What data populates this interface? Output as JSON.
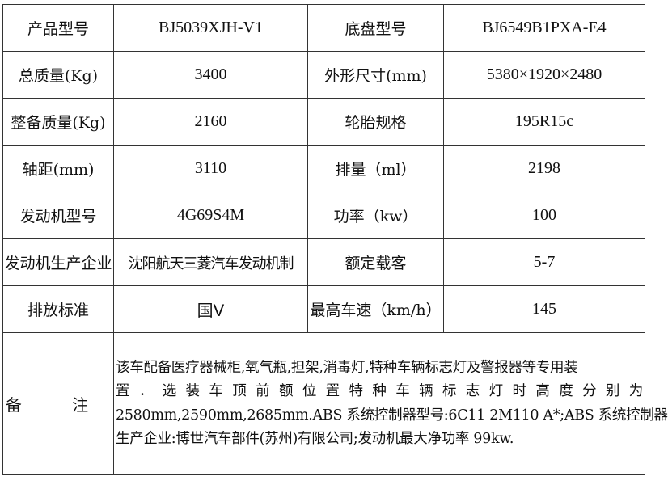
{
  "rows": [
    {
      "l1": "产品型号",
      "v1": "BJ5039XJH-V1",
      "l2": "底盘型号",
      "v2": "BJ6549B1PXA-E4"
    },
    {
      "l1": "总质量(Kg)",
      "v1": "3400",
      "l2": "外形尺寸(mm)",
      "v2": "5380×1920×2480"
    },
    {
      "l1": "整备质量(Kg)",
      "v1": "2160",
      "l2": "轮胎规格",
      "v2": "195R15c"
    },
    {
      "l1": "轴距(mm)",
      "v1": "3110",
      "l2": "排量（ml）",
      "v2": "2198"
    },
    {
      "l1": "发动机型号",
      "v1": "4G69S4M",
      "l2": "功率（kw）",
      "v2": "100"
    },
    {
      "l1": "发动机生产企业",
      "v1": "沈阳航天三菱汽车发动机制",
      "l2": "额定载客",
      "v2": "5-7"
    },
    {
      "l1": "排放标准",
      "v1": "国Ⅴ",
      "l2": "最高车速（km/h）",
      "v2": "145"
    }
  ],
  "remarks": {
    "label": "备 注",
    "lines": [
      "该车配备医疗器械柜,氧气瓶,担架,消毒灯,特种车辆标志灯及警报器等专用装",
      "置．选装车顶前额位置特种车辆标志灯时高度分别为",
      "2580mm,2590mm,2685mm.ABS 系统控制器型号:6C11 2M110 A*;ABS 系统控制器",
      "生产企业:博世汽车部件(苏州)有限公司;发动机最大净功率 99kw."
    ]
  }
}
